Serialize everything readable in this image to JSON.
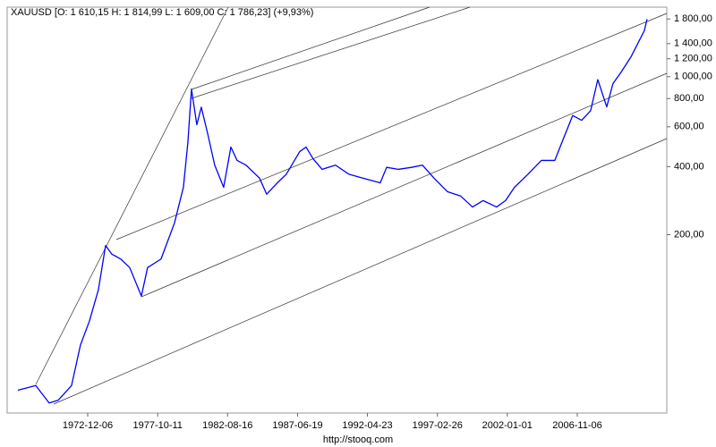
{
  "chart_data": {
    "type": "line",
    "title": "XAUUSD [O: 1 610,15  H: 1 814,99  L: 1 609,00  C: 1 786,23] (+9,93%)",
    "source": "http://stooq.com",
    "log_scale": true,
    "grid": false,
    "color": "#0000ff",
    "x": [
      1968.09,
      1969.33,
      1970.26,
      1970.88,
      1971.81,
      1972.43,
      1973.05,
      1973.67,
      1974.17,
      1974.6,
      1975.22,
      1975.84,
      1976.65,
      1977.08,
      1978.01,
      1978.94,
      1979.56,
      1979.87,
      1980.12,
      1980.49,
      1980.8,
      1981.24,
      1981.73,
      1982.35,
      1982.85,
      1983.28,
      1983.9,
      1984.83,
      1985.33,
      1986.07,
      1986.69,
      1987.62,
      1988.06,
      1988.55,
      1989.17,
      1990.1,
      1991.03,
      1991.96,
      1993.2,
      1993.64,
      1994.44,
      1995.37,
      1996.12,
      1996.92,
      1997.85,
      1998.78,
      1999.59,
      2000.33,
      2001.26,
      2001.88,
      2002.5,
      2003.43,
      2004.36,
      2005.29,
      2005.91,
      2006.53,
      2007.15,
      2007.77,
      2008.27,
      2008.89,
      2009.32,
      2009.94,
      2010.56,
      2011.06,
      2011.5,
      2011.68
    ],
    "values": [
      41,
      43,
      36,
      37,
      43,
      65,
      83,
      114,
      179,
      164,
      156,
      143,
      107,
      143,
      156,
      225,
      324,
      511,
      881,
      613,
      733,
      560,
      406,
      324,
      488,
      426,
      406,
      356,
      302,
      339,
      370,
      466,
      488,
      433,
      389,
      406,
      370,
      356,
      339,
      397,
      389,
      397,
      406,
      356,
      310,
      296,
      265,
      283,
      265,
      283,
      324,
      370,
      426,
      426,
      536,
      673,
      641,
      706,
      970,
      735,
      931,
      1060,
      1220,
      1410,
      1600,
      1796
    ],
    "xlim": [
      1967.35,
      2013.05
    ],
    "ylim": [
      32.5,
      2030
    ],
    "xticks": [
      {
        "value": 1972.93,
        "label": "1972-12-06"
      },
      {
        "value": 1977.78,
        "label": "1977-10-11"
      },
      {
        "value": 1982.62,
        "label": "1982-08-16"
      },
      {
        "value": 1987.47,
        "label": "1987-06-19"
      },
      {
        "value": 1992.31,
        "label": "1992-04-23"
      },
      {
        "value": 1997.16,
        "label": "1997-02-26"
      },
      {
        "value": 2002.0,
        "label": "2002-01-01"
      },
      {
        "value": 2006.85,
        "label": "2006-11-06"
      }
    ],
    "yticks": [
      {
        "value": 200,
        "label": "200,00"
      },
      {
        "value": 400,
        "label": "400,00"
      },
      {
        "value": 600,
        "label": "600,00"
      },
      {
        "value": 800,
        "label": "800,00"
      },
      {
        "value": 1000,
        "label": "1 000,00"
      },
      {
        "value": 1200,
        "label": "1 200,00"
      },
      {
        "value": 1400,
        "label": "1 400,00"
      },
      {
        "value": 1800,
        "label": "1 800,00"
      }
    ]
  }
}
